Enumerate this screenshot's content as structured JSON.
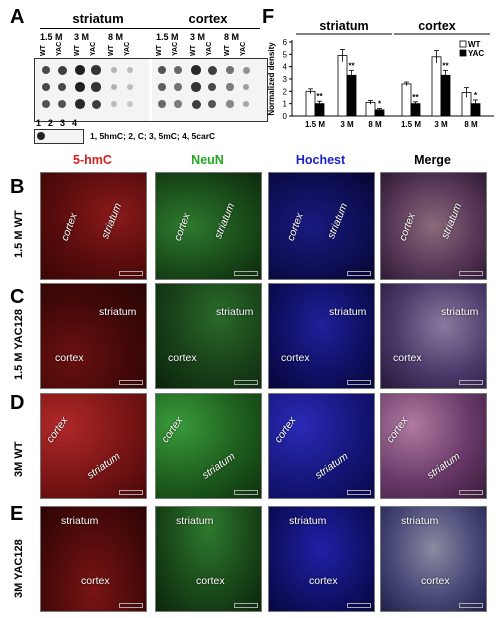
{
  "panel_letters": [
    "A",
    "B",
    "C",
    "D",
    "E",
    "F"
  ],
  "panelA": {
    "group_titles": [
      "striatum",
      "cortex"
    ],
    "ages": [
      "1.5 M",
      "3 M",
      "8 M",
      "1.5 M",
      "3 M",
      "8 M"
    ],
    "geno": [
      "WT",
      "YAC",
      "WT",
      "YAC",
      "WT",
      "YAC",
      "WT",
      "YAC",
      "WT",
      "YAC",
      "WT",
      "YAC"
    ],
    "standard_numbers": [
      "1",
      "2",
      "3",
      "4"
    ],
    "standard_legend": "1, 5hmC; 2, C; 3, 5mC; 4, 5carC"
  },
  "columns": [
    "5-hmC",
    "NeuN",
    "Hochest",
    "Merge"
  ],
  "column_colors": [
    "#d42020",
    "#22a822",
    "#1c22c8",
    "#000000"
  ],
  "rows": [
    {
      "label": "1.5 M WT",
      "regions": [
        "cortex",
        "striatum"
      ]
    },
    {
      "label": "1.5 M YAC128",
      "regions": [
        "striatum",
        "cortex"
      ]
    },
    {
      "label": "3M WT",
      "regions": [
        "cortex",
        "striatum"
      ]
    },
    {
      "label": "3M YAC128",
      "regions": [
        "striatum",
        "cortex"
      ]
    }
  ],
  "chart_data": {
    "type": "bar",
    "ylabel": "Normalized density",
    "ylim": [
      0,
      6
    ],
    "yticks": [
      "0",
      "1",
      "2",
      "3",
      "4",
      "5",
      "6"
    ],
    "group_titles": [
      "striatum",
      "cortex"
    ],
    "categories": [
      "1.5 M",
      "3 M",
      "8 M",
      "1.5 M",
      "3 M",
      "8 M"
    ],
    "series": [
      {
        "name": "WT",
        "color": "#ffffff",
        "values": [
          2.0,
          4.9,
          1.1,
          2.6,
          4.8,
          1.9
        ],
        "errors": [
          0.2,
          0.5,
          0.15,
          0.15,
          0.5,
          0.4
        ]
      },
      {
        "name": "YAC",
        "color": "#000000",
        "values": [
          1.0,
          3.3,
          0.5,
          1.0,
          3.3,
          1.0
        ],
        "errors": [
          0.2,
          0.4,
          0.1,
          0.15,
          0.4,
          0.3
        ]
      }
    ],
    "significance": [
      "**",
      "**",
      "*",
      "**",
      "**",
      "*"
    ],
    "legend_position": "top-right"
  }
}
